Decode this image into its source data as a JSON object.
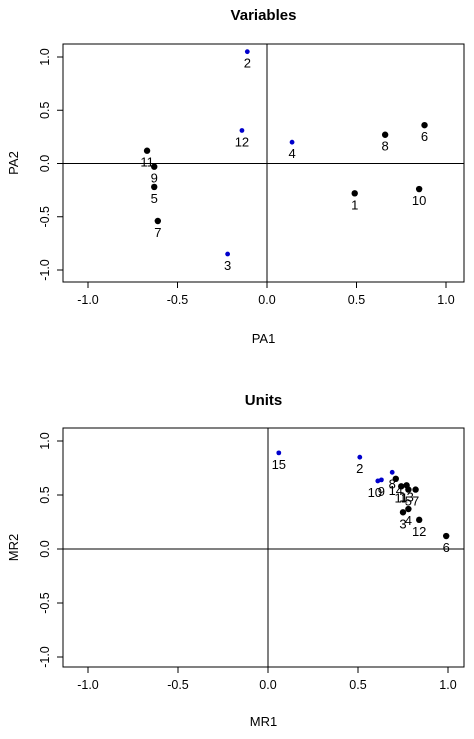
{
  "chart_data": [
    {
      "type": "scatter",
      "title": "Variables",
      "xlabel": "PA1",
      "ylabel": "PA2",
      "xlim": [
        -1.0,
        1.0
      ],
      "ylim": [
        -1.0,
        1.0
      ],
      "xticks": [
        "-1.0",
        "-0.5",
        "0.0",
        "0.5",
        "1.0"
      ],
      "yticks": [
        "-1.0",
        "-0.5",
        "0.0",
        "0.5",
        "1.0"
      ],
      "reference_lines": {
        "x": 0,
        "y": 0
      },
      "colors": {
        "primary": "#000000",
        "secondary": "#0000cc"
      },
      "points": [
        {
          "label": "2",
          "x": -0.11,
          "y": 1.05,
          "color": "#0000cc",
          "lpos": "below"
        },
        {
          "label": "12",
          "x": -0.14,
          "y": 0.31,
          "color": "#0000cc",
          "lpos": "below"
        },
        {
          "label": "4",
          "x": 0.14,
          "y": 0.2,
          "color": "#0000cc",
          "lpos": "below"
        },
        {
          "label": "3",
          "x": -0.22,
          "y": -0.85,
          "color": "#0000cc",
          "lpos": "below"
        },
        {
          "label": "11",
          "x": -0.67,
          "y": 0.12,
          "color": "#000000",
          "lpos": "below"
        },
        {
          "label": "9",
          "x": -0.63,
          "y": -0.03,
          "color": "#000000",
          "lpos": "below"
        },
        {
          "label": "5",
          "x": -0.63,
          "y": -0.22,
          "color": "#000000",
          "lpos": "below"
        },
        {
          "label": "7",
          "x": -0.61,
          "y": -0.54,
          "color": "#000000",
          "lpos": "below"
        },
        {
          "label": "8",
          "x": 0.66,
          "y": 0.27,
          "color": "#000000",
          "lpos": "below"
        },
        {
          "label": "6",
          "x": 0.88,
          "y": 0.36,
          "color": "#000000",
          "lpos": "below"
        },
        {
          "label": "1",
          "x": 0.49,
          "y": -0.28,
          "color": "#000000",
          "lpos": "below"
        },
        {
          "label": "10",
          "x": 0.85,
          "y": -0.24,
          "color": "#000000",
          "lpos": "below"
        }
      ]
    },
    {
      "type": "scatter",
      "title": "Units",
      "xlabel": "MR1",
      "ylabel": "MR2",
      "xlim": [
        -1.0,
        1.0
      ],
      "ylim": [
        -1.0,
        1.0
      ],
      "xticks": [
        "-1.0",
        "-0.5",
        "0.0",
        "0.5",
        "1.0"
      ],
      "yticks": [
        "-1.0",
        "-0.5",
        "0.0",
        "0.5",
        "1.0"
      ],
      "reference_lines": {
        "x": 0,
        "y": 0
      },
      "colors": {
        "primary": "#000000",
        "secondary": "#0000cc"
      },
      "points": [
        {
          "label": "15",
          "x": 0.06,
          "y": 0.89,
          "color": "#0000cc",
          "lpos": "below"
        },
        {
          "label": "2",
          "x": 0.51,
          "y": 0.85,
          "color": "#0000cc",
          "lpos": "below"
        },
        {
          "label": "10",
          "x": 0.61,
          "y": 0.63,
          "color": "#0000cc",
          "lpos": "belowleft"
        },
        {
          "label": "9",
          "x": 0.63,
          "y": 0.64,
          "color": "#0000cc",
          "lpos": "below"
        },
        {
          "label": "8",
          "x": 0.69,
          "y": 0.71,
          "color": "#0000cc",
          "lpos": "below"
        },
        {
          "label": "14",
          "x": 0.71,
          "y": 0.65,
          "color": "#000000",
          "lpos": "below"
        },
        {
          "label": "11",
          "x": 0.74,
          "y": 0.58,
          "color": "#000000",
          "lpos": "below"
        },
        {
          "label": "13",
          "x": 0.77,
          "y": 0.59,
          "color": "#000000",
          "lpos": "below"
        },
        {
          "label": "5",
          "x": 0.78,
          "y": 0.55,
          "color": "#000000",
          "lpos": "below"
        },
        {
          "label": "7",
          "x": 0.82,
          "y": 0.55,
          "color": "#000000",
          "lpos": "below"
        },
        {
          "label": "3",
          "x": 0.75,
          "y": 0.34,
          "color": "#000000",
          "lpos": "below"
        },
        {
          "label": "4",
          "x": 0.78,
          "y": 0.37,
          "color": "#000000",
          "lpos": "below"
        },
        {
          "label": "12",
          "x": 0.84,
          "y": 0.27,
          "color": "#000000",
          "lpos": "below"
        },
        {
          "label": "6",
          "x": 0.99,
          "y": 0.12,
          "color": "#000000",
          "lpos": "below"
        }
      ]
    }
  ]
}
